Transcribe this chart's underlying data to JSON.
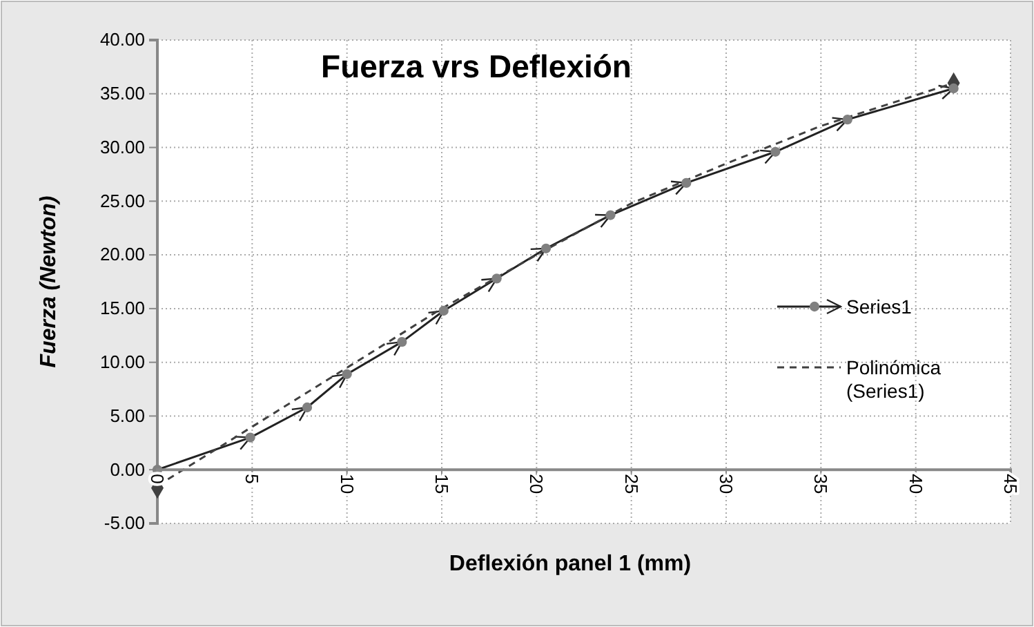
{
  "chart_data": {
    "type": "line",
    "title": "Fuerza vrs Deflexión",
    "xlabel": "Deflexión  panel 1 (mm)",
    "ylabel": "Fuerza (Newton)",
    "xlim": [
      0,
      45
    ],
    "xticks": [
      0,
      5,
      10,
      15,
      20,
      25,
      30,
      35,
      40,
      45
    ],
    "ylim": [
      -5,
      40
    ],
    "yticks": [
      {
        "value": -5,
        "label": "-5.00"
      },
      {
        "value": 0,
        "label": "0.00"
      },
      {
        "value": 5,
        "label": "5.00"
      },
      {
        "value": 10,
        "label": "10.00"
      },
      {
        "value": 15,
        "label": "15.00"
      },
      {
        "value": 20,
        "label": "20.00"
      },
      {
        "value": 25,
        "label": "25.00"
      },
      {
        "value": 30,
        "label": "30.00"
      },
      {
        "value": 35,
        "label": "35.00"
      },
      {
        "value": 40,
        "label": "40.00"
      }
    ],
    "grid": true,
    "legend": "right",
    "series": [
      {
        "name": "Series1",
        "color": "#808080",
        "marker": "circle",
        "line_style": "solid",
        "x": [
          0,
          4.9,
          7.9,
          10,
          12.9,
          15.1,
          17.9,
          20.5,
          23.9,
          27.9,
          32.6,
          36.4,
          42
        ],
        "values": [
          0,
          3,
          5.8,
          8.9,
          11.9,
          14.8,
          17.8,
          20.6,
          23.7,
          26.7,
          29.6,
          32.6,
          35.5
        ]
      },
      {
        "name": "Polinómica (Series1)",
        "color": "#404040",
        "marker": "none",
        "line_style": "dashed",
        "x": [
          0,
          5,
          10,
          15,
          20,
          25,
          30,
          35,
          42
        ],
        "values": [
          -1.5,
          4,
          9.5,
          15,
          20,
          24.8,
          28.5,
          32,
          36
        ]
      },
      {
        "type": "scatter",
        "color": "#404040",
        "marker": "diamond",
        "x": [
          0,
          42
        ],
        "values": [
          -1.7,
          36
        ]
      }
    ]
  }
}
